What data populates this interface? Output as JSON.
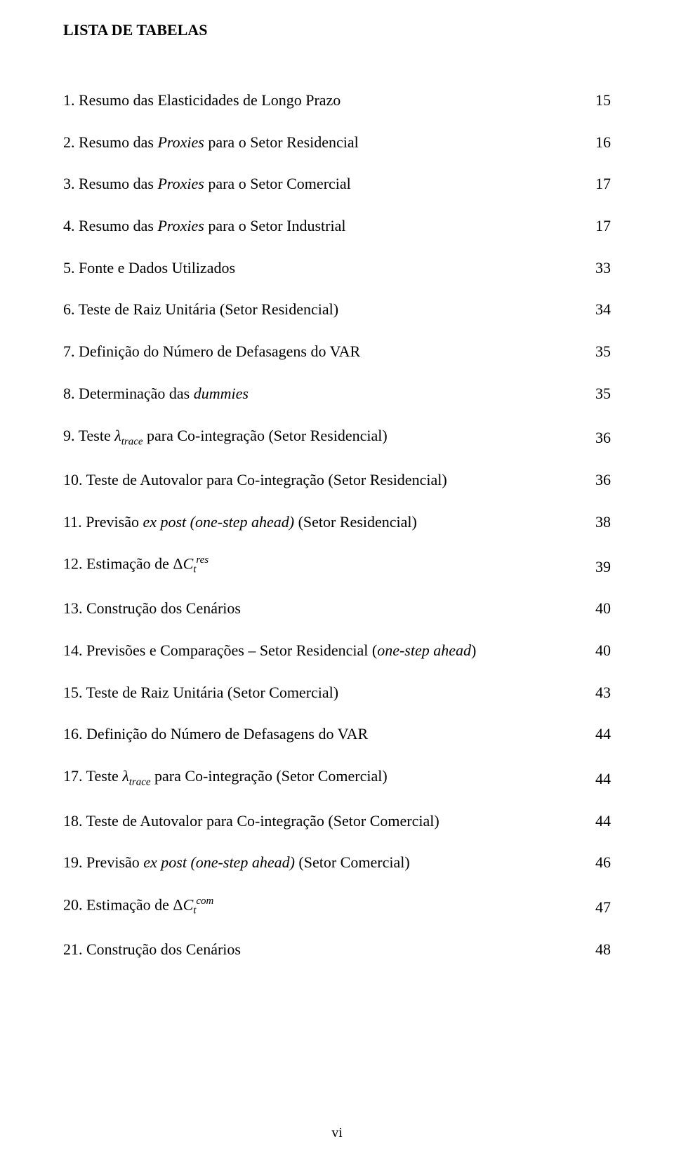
{
  "title": "LISTA DE TABELAS",
  "roman_page": "vi",
  "entries": [
    {
      "num": "1.",
      "text": "Resumo das Elasticidades de Longo Prazo",
      "page": "15",
      "kind": "plain"
    },
    {
      "num": "2.",
      "text_a": "Resumo das ",
      "text_i": "Proxies",
      "text_b": " para o Setor Residencial",
      "page": "16",
      "kind": "italic_mid"
    },
    {
      "num": "3.",
      "text_a": "Resumo das ",
      "text_i": "Proxies",
      "text_b": " para o Setor Comercial",
      "page": "17",
      "kind": "italic_mid"
    },
    {
      "num": "4.",
      "text_a": "Resumo das ",
      "text_i": "Proxies",
      "text_b": " para o Setor Industrial",
      "page": "17",
      "kind": "italic_mid"
    },
    {
      "num": "5.",
      "text": "Fonte e Dados Utilizados",
      "page": "33",
      "kind": "plain"
    },
    {
      "num": "6.",
      "text": "Teste de Raiz Unitária (Setor Residencial)",
      "page": "34",
      "kind": "plain"
    },
    {
      "num": "7.",
      "text": "Definição do Número de Defasagens do VAR",
      "page": "35",
      "kind": "plain"
    },
    {
      "num": "8.",
      "text_a": "Determinação das ",
      "text_i": "dummies",
      "text_b": "",
      "page": "35",
      "kind": "italic_mid"
    },
    {
      "num": "9.",
      "text_a": "Teste ",
      "sym": "λ",
      "sub": "trace",
      "text_b": " para Co-integração (Setor Residencial)",
      "page": "36",
      "kind": "lambda"
    },
    {
      "num": "10.",
      "text": "Teste de Autovalor para Co-integração (Setor Residencial)",
      "page": "36",
      "kind": "plain"
    },
    {
      "num": "11.",
      "text_a": "Previsão ",
      "text_i": "ex post (one-step ahead)",
      "text_b": " (Setor Residencial)",
      "page": "38",
      "kind": "italic_mid"
    },
    {
      "num": "12.",
      "text_a": "Estimação de ",
      "delta": "Δ",
      "sym": "C",
      "sub": "t",
      "sup": "res",
      "page": "39",
      "kind": "delta_c"
    },
    {
      "num": "13.",
      "text": "Construção dos Cenários",
      "page": "40",
      "kind": "plain"
    },
    {
      "num": "14.",
      "text_a": "Previsões e Comparações – Setor Residencial (",
      "text_i": "one-step ahead",
      "text_b": ")",
      "page": "40",
      "kind": "italic_mid"
    },
    {
      "num": "15.",
      "text": "Teste de Raiz Unitária (Setor Comercial)",
      "page": "43",
      "kind": "plain"
    },
    {
      "num": "16.",
      "text": "Definição do Número de Defasagens do VAR",
      "page": "44",
      "kind": "plain"
    },
    {
      "num": "17.",
      "text_a": "Teste ",
      "sym": "λ",
      "sub": "trace",
      "text_b": " para Co-integração (Setor Comercial)",
      "page": "44",
      "kind": "lambda"
    },
    {
      "num": "18.",
      "text": "Teste de Autovalor para Co-integração (Setor Comercial)",
      "page": "44",
      "kind": "plain"
    },
    {
      "num": "19.",
      "text_a": "Previsão ",
      "text_i": "ex post (one-step ahead)",
      "text_b": " (Setor Comercial)",
      "page": "46",
      "kind": "italic_mid"
    },
    {
      "num": "20.",
      "text_a": "Estimação de ",
      "delta": "Δ",
      "sym": "C",
      "sub": "t",
      "sup": "com",
      "page": "47",
      "kind": "delta_c"
    },
    {
      "num": "21.",
      "text": "Construção dos Cenários",
      "page": "48",
      "kind": "plain"
    }
  ]
}
